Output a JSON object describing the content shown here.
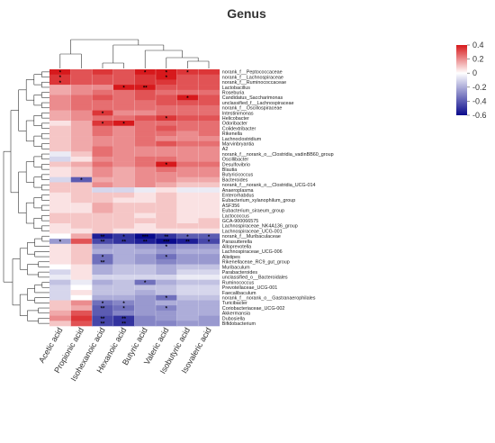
{
  "chart_data": {
    "type": "heatmap",
    "title": "Genus",
    "columns": [
      "Acetic acid",
      "Propionic acid",
      "Isohexanoic acid",
      "Hexanoic acid",
      "Butyric acid",
      "Valeric acid",
      "Isobutyric acid",
      "Isovaleric acid"
    ],
    "rows": [
      "norank_f__Peptococcaceae",
      "norank_f__Lachnospiraceae",
      "norank_f__Ruminococcaceae",
      "Lactobacillus",
      "Roseburia",
      "Candidatus_Saccharimonas",
      "unclassified_f__Lachnospiraceae",
      "norank_f__Oscillospiraceae",
      "Intestinimonas",
      "Helicobacter",
      "Odoribacter",
      "Colidextribacter",
      "Rikenella",
      "Lachnoclostridium",
      "Marvinbryantia",
      "A2",
      "norank_f__norank_o__Clostridia_vadinBB60_group",
      "Oscillibacter",
      "Desulfovibrio",
      "Blautia",
      "Butyricicoccus",
      "Bacteroides",
      "norank_f__norank_o__Clostridia_UCG-014",
      "Anaeroplasma",
      "Enterorhabdus",
      "Eubacterium_xylanophilum_group",
      "ASF356",
      "Eubacterium_siraeum_group",
      "Lactococcus",
      "GCA-900066575",
      "Lachnospiraceae_NK4A136_group",
      "Lachnospiraceae_UCG-001",
      "norank_f__Muribaculaceae",
      "Parasutterella",
      "Alloprevotella",
      "Lachnospiraceae_UCG-006",
      "Alistipes",
      "Rikenellaceae_RC9_gut_group",
      "Muribaculum",
      "Parabacteroides",
      "unclassified_o__Bacteroidales",
      "Ruminococcus",
      "Prevotellaceae_UCG-001",
      "Faecalibaculum",
      "norank_f__norank_o__Gastranaerophilales",
      "Turicibacter",
      "Coriobacteriaceae_UCG-002",
      "Akkermansia",
      "Dubosiella",
      "Bifidobacterium"
    ],
    "values": [
      [
        0.4,
        0.3,
        0.35,
        0.3,
        0.4,
        0.4,
        0.35,
        0.35
      ],
      [
        0.35,
        0.3,
        0.3,
        0.3,
        0.35,
        0.4,
        0.3,
        0.3
      ],
      [
        0.35,
        0.3,
        0.3,
        0.3,
        0.35,
        0.35,
        0.3,
        0.3
      ],
      [
        0.15,
        0.2,
        0.2,
        0.4,
        0.4,
        0.3,
        0.3,
        0.3
      ],
      [
        0.15,
        0.2,
        0.25,
        0.25,
        0.3,
        0.25,
        0.25,
        0.25
      ],
      [
        0.2,
        0.25,
        0.3,
        0.25,
        0.3,
        0.3,
        0.4,
        0.3
      ],
      [
        0.2,
        0.25,
        0.25,
        0.25,
        0.25,
        0.3,
        0.3,
        0.3
      ],
      [
        0.2,
        0.25,
        0.25,
        0.25,
        0.25,
        0.25,
        0.25,
        0.25
      ],
      [
        0.15,
        0.2,
        0.35,
        0.2,
        0.2,
        0.25,
        0.25,
        0.25
      ],
      [
        0.15,
        0.2,
        0.25,
        0.25,
        0.3,
        0.35,
        0.3,
        0.3
      ],
      [
        0.05,
        0.15,
        0.35,
        0.4,
        0.25,
        0.25,
        0.25,
        0.25
      ],
      [
        0.1,
        0.15,
        0.25,
        0.2,
        0.25,
        0.3,
        0.25,
        0.25
      ],
      [
        0.1,
        0.15,
        0.25,
        0.2,
        0.25,
        0.25,
        0.2,
        0.25
      ],
      [
        0.1,
        0.15,
        0.2,
        0.2,
        0.25,
        0.2,
        0.2,
        0.2
      ],
      [
        0.1,
        0.15,
        0.2,
        0.2,
        0.25,
        0.3,
        0.25,
        0.25
      ],
      [
        0.1,
        0.15,
        0.25,
        0.2,
        0.2,
        0.2,
        0.2,
        0.2
      ],
      [
        -0.05,
        0.1,
        0.25,
        0.2,
        0.2,
        0.2,
        0.2,
        0.2
      ],
      [
        -0.1,
        0.05,
        0.2,
        0.2,
        0.25,
        0.25,
        0.2,
        0.2
      ],
      [
        0.1,
        0.15,
        0.25,
        0.2,
        0.25,
        0.4,
        0.25,
        0.25
      ],
      [
        0.05,
        0.1,
        0.2,
        0.15,
        0.2,
        0.25,
        0.2,
        0.2
      ],
      [
        0.05,
        0.1,
        0.2,
        0.15,
        0.2,
        0.2,
        0.2,
        0.2
      ],
      [
        -0.1,
        -0.4,
        0.15,
        0.15,
        0.2,
        0.2,
        0.15,
        0.15
      ],
      [
        0.1,
        0.1,
        0.2,
        0.15,
        0.2,
        0.15,
        0.1,
        0.1
      ],
      [
        0.1,
        0.1,
        -0.1,
        -0.1,
        -0.05,
        0.05,
        -0.05,
        -0.05
      ],
      [
        0.05,
        0.1,
        0.1,
        0.1,
        0.05,
        0.1,
        0.05,
        0.05
      ],
      [
        0.05,
        0.1,
        0.1,
        0.05,
        0.05,
        0.1,
        0.05,
        0.05
      ],
      [
        0.05,
        0.05,
        0.15,
        0.1,
        0.1,
        0.1,
        0.05,
        0.05
      ],
      [
        0.05,
        0.05,
        0.15,
        0.1,
        0.1,
        0.1,
        0.05,
        0.05
      ],
      [
        0.1,
        0.1,
        0.1,
        0.1,
        0.05,
        0.1,
        0.05,
        0.05
      ],
      [
        0.1,
        0.1,
        0.1,
        0.1,
        0.1,
        0.1,
        0.05,
        0.1
      ],
      [
        0.05,
        0.1,
        0.1,
        0.1,
        0.05,
        0.1,
        0.1,
        0.1
      ],
      [
        0.05,
        0.05,
        0.1,
        0.05,
        0.05,
        0.05,
        0.05,
        0.05
      ],
      [
        0.0,
        0.15,
        -0.55,
        -0.5,
        -0.6,
        -0.5,
        -0.4,
        -0.4
      ],
      [
        -0.25,
        0.3,
        -0.45,
        -0.5,
        -0.55,
        -0.6,
        -0.55,
        -0.45
      ],
      [
        0.05,
        0.1,
        -0.25,
        -0.2,
        -0.25,
        -0.3,
        -0.25,
        -0.25
      ],
      [
        0.05,
        0.1,
        -0.2,
        -0.2,
        -0.2,
        -0.25,
        -0.2,
        -0.2
      ],
      [
        0.05,
        0.1,
        -0.35,
        -0.2,
        -0.25,
        -0.35,
        -0.25,
        -0.25
      ],
      [
        0.05,
        0.1,
        -0.35,
        -0.2,
        -0.25,
        -0.3,
        -0.25,
        -0.25
      ],
      [
        0.0,
        0.05,
        -0.2,
        -0.15,
        -0.15,
        -0.2,
        -0.15,
        -0.15
      ],
      [
        -0.1,
        0.05,
        -0.2,
        -0.15,
        -0.15,
        -0.2,
        -0.1,
        -0.1
      ],
      [
        -0.05,
        0.05,
        -0.1,
        -0.1,
        -0.1,
        -0.1,
        -0.05,
        -0.05
      ],
      [
        -0.15,
        -0.05,
        -0.2,
        -0.15,
        -0.35,
        -0.2,
        -0.15,
        -0.15
      ],
      [
        -0.1,
        0.0,
        -0.15,
        -0.15,
        -0.15,
        -0.15,
        -0.1,
        -0.1
      ],
      [
        -0.1,
        0.05,
        -0.15,
        -0.15,
        -0.2,
        -0.15,
        -0.1,
        -0.1
      ],
      [
        -0.1,
        0.0,
        -0.2,
        -0.2,
        -0.25,
        -0.35,
        -0.15,
        -0.15
      ],
      [
        0.1,
        0.2,
        -0.35,
        -0.3,
        -0.25,
        -0.2,
        -0.2,
        -0.2
      ],
      [
        0.1,
        0.15,
        -0.4,
        -0.35,
        -0.25,
        -0.3,
        -0.2,
        -0.2
      ],
      [
        0.15,
        0.3,
        -0.4,
        -0.3,
        -0.25,
        -0.25,
        -0.2,
        -0.2
      ],
      [
        0.2,
        0.35,
        -0.45,
        -0.5,
        -0.3,
        -0.25,
        -0.2,
        -0.25
      ],
      [
        0.1,
        0.3,
        -0.45,
        -0.5,
        -0.3,
        -0.3,
        -0.25,
        -0.25
      ]
    ],
    "significance": [
      [
        "*",
        "",
        "",
        "",
        "*",
        "*",
        "*",
        ""
      ],
      [
        "*",
        "",
        "",
        "",
        "",
        "*",
        "",
        ""
      ],
      [
        "*",
        "",
        "",
        "",
        "",
        "",
        "",
        ""
      ],
      [
        "",
        "",
        "",
        "*",
        "**",
        "",
        "",
        ""
      ],
      [
        "",
        "",
        "",
        "",
        "",
        "",
        "",
        ""
      ],
      [
        "",
        "",
        "",
        "",
        "",
        "",
        "*",
        ""
      ],
      [
        "",
        "",
        "",
        "",
        "",
        "",
        "",
        ""
      ],
      [
        "",
        "",
        "",
        "",
        "",
        "",
        "",
        ""
      ],
      [
        "",
        "",
        "*",
        "",
        "",
        "",
        "",
        ""
      ],
      [
        "",
        "",
        "",
        "",
        "",
        "*",
        "",
        ""
      ],
      [
        "",
        "",
        "*",
        "*",
        "",
        "",
        "",
        ""
      ],
      [
        "",
        "",
        "",
        "",
        "",
        "",
        "",
        ""
      ],
      [
        "",
        "",
        "",
        "",
        "",
        "",
        "",
        ""
      ],
      [
        "",
        "",
        "",
        "",
        "",
        "",
        "",
        ""
      ],
      [
        "",
        "",
        "",
        "",
        "",
        "",
        "",
        ""
      ],
      [
        "",
        "",
        "",
        "",
        "",
        "",
        "",
        ""
      ],
      [
        "",
        "",
        "",
        "",
        "",
        "",
        "",
        ""
      ],
      [
        "",
        "",
        "",
        "",
        "",
        "",
        "",
        ""
      ],
      [
        "",
        "",
        "",
        "",
        "",
        "*",
        "",
        ""
      ],
      [
        "",
        "",
        "",
        "",
        "",
        "",
        "",
        ""
      ],
      [
        "",
        "",
        "",
        "",
        "",
        "",
        "",
        ""
      ],
      [
        "",
        "*",
        "",
        "",
        "",
        "",
        "",
        ""
      ],
      [
        "",
        "",
        "",
        "",
        "",
        "",
        "",
        ""
      ],
      [
        "",
        "",
        "",
        "",
        "",
        "",
        "",
        ""
      ],
      [
        "",
        "",
        "",
        "",
        "",
        "",
        "",
        ""
      ],
      [
        "",
        "",
        "",
        "",
        "",
        "",
        "",
        ""
      ],
      [
        "",
        "",
        "",
        "",
        "",
        "",
        "",
        ""
      ],
      [
        "",
        "",
        "",
        "",
        "",
        "",
        "",
        ""
      ],
      [
        "",
        "",
        "",
        "",
        "",
        "",
        "",
        ""
      ],
      [
        "",
        "",
        "",
        "",
        "",
        "",
        "",
        ""
      ],
      [
        "",
        "",
        "",
        "",
        "",
        "",
        "",
        ""
      ],
      [
        "",
        "",
        "",
        "",
        "",
        "",
        "",
        ""
      ],
      [
        "",
        "",
        "**",
        "*",
        "***",
        "**",
        "*",
        "*"
      ],
      [
        "*",
        "",
        "**",
        "**",
        "**",
        "***",
        "**",
        "*"
      ],
      [
        "",
        "",
        "",
        "",
        "",
        "*",
        "",
        ""
      ],
      [
        "",
        "",
        "",
        "",
        "",
        "",
        "",
        ""
      ],
      [
        "",
        "",
        "*",
        "",
        "",
        "*",
        "",
        ""
      ],
      [
        "",
        "",
        "**",
        "",
        "",
        "",
        "",
        ""
      ],
      [
        "",
        "",
        "",
        "",
        "",
        "",
        "",
        ""
      ],
      [
        "",
        "",
        "",
        "",
        "",
        "",
        "",
        ""
      ],
      [
        "",
        "",
        "",
        "",
        "",
        "",
        "",
        ""
      ],
      [
        "",
        "",
        "",
        "",
        "*",
        "",
        "",
        ""
      ],
      [
        "",
        "",
        "",
        "",
        "",
        "",
        "",
        ""
      ],
      [
        "",
        "",
        "",
        "",
        "",
        "",
        "",
        ""
      ],
      [
        "",
        "",
        "",
        "",
        "",
        "*",
        "",
        ""
      ],
      [
        "",
        "",
        "*",
        "*",
        "",
        "",
        "",
        ""
      ],
      [
        "",
        "",
        "**",
        "*",
        "",
        "*",
        "",
        ""
      ],
      [
        "",
        "",
        "",
        "",
        "",
        "",
        "",
        ""
      ],
      [
        "",
        "",
        "**",
        "**",
        "",
        "",
        "",
        ""
      ],
      [
        "",
        "",
        "**",
        "**",
        "",
        "",
        "",
        ""
      ]
    ],
    "colorbar": {
      "min": -0.6,
      "max": 0.4,
      "ticks": [
        "0.4",
        "0.2",
        "0",
        "-0.2",
        "-0.4",
        "-0.6"
      ],
      "colors": {
        "high": "#d7191c",
        "mid": "#ffffff",
        "low": "#0a0a8c"
      }
    }
  }
}
